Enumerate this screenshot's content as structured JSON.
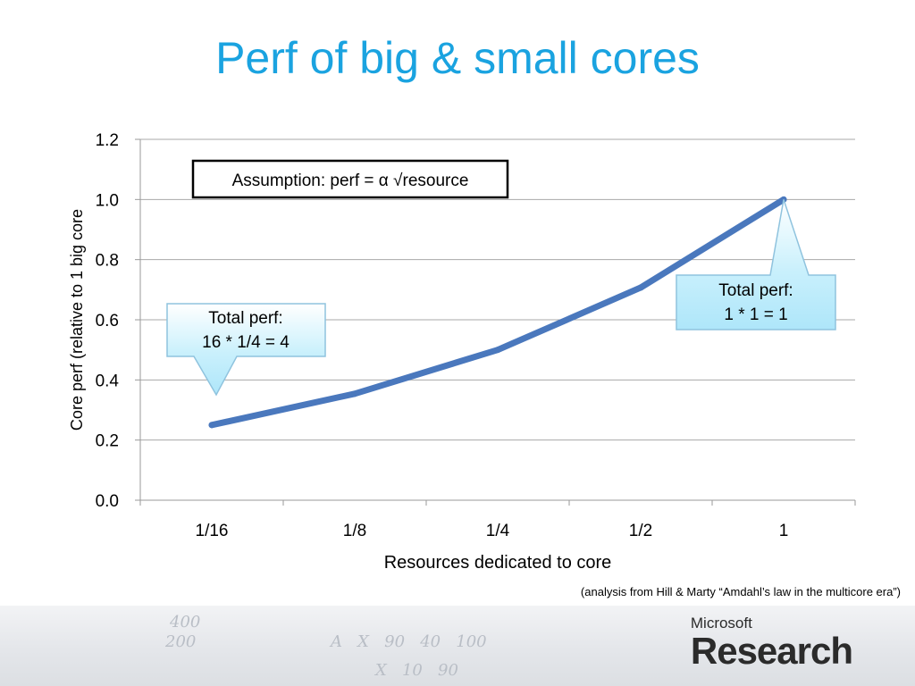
{
  "slide": {
    "title": "Perf of big & small cores",
    "footnote": "(analysis from Hill & Marty “Amdahl’s law in the multicore era”)",
    "logo_small": "Microsoft",
    "logo_big": "Research"
  },
  "colors": {
    "title": "#1aa3e0",
    "series_line": "#4a78bd",
    "callout_fill": "#c9f0fc",
    "callout_border": "#8fc3de"
  },
  "chart_data": {
    "type": "line",
    "categories": [
      "1/16",
      "1/8",
      "1/4",
      "1/2",
      "1"
    ],
    "series": [
      {
        "values": [
          0.25,
          0.354,
          0.5,
          0.707,
          1.0
        ]
      }
    ],
    "xlabel": "Resources dedicated to core",
    "ylabel": "Core perf (relative to 1 big core",
    "ylim": [
      0,
      1.2
    ],
    "yticks": [
      "0.0",
      "0.2",
      "0.4",
      "0.6",
      "0.8",
      "1.0",
      "1.2"
    ],
    "grid": true,
    "legend": "none",
    "annotations": {
      "assumption": "Assumption: perf = α √resource",
      "left_callout": {
        "line1": "Total perf:",
        "line2": "16 * 1/4 = 4",
        "points_to": "1/16"
      },
      "right_callout": {
        "line1": "Total perf:",
        "line2": "1 * 1 = 1",
        "points_to": "1"
      }
    }
  }
}
